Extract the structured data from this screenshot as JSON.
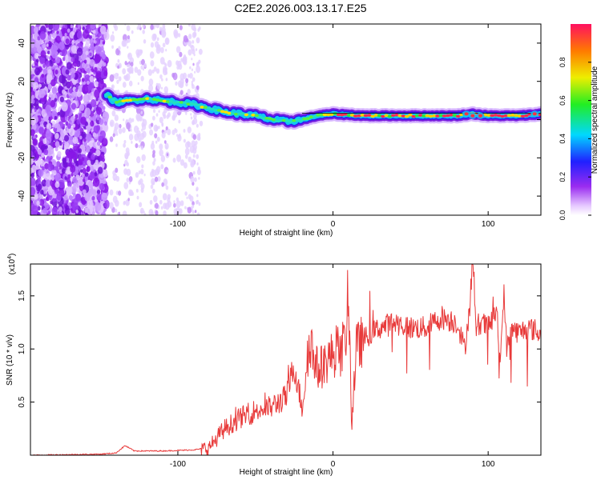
{
  "title": "C2E2.2026.003.13.17.E25",
  "chart_data": [
    {
      "type": "heatmap",
      "xlabel": "Height of straight line (km)",
      "ylabel": "Frequency (Hz)",
      "xlim": [
        -195,
        134
      ],
      "ylim": [
        -50,
        50
      ],
      "xticks": [
        -100,
        0,
        100
      ],
      "yticks": [
        -40,
        -20,
        0,
        20,
        40
      ],
      "colorbar": {
        "label": "Normalized spectral amplitude",
        "range": [
          0,
          1
        ],
        "ticks": [
          "0.0",
          "0.2",
          "0.4",
          "0.6",
          "0.8"
        ]
      },
      "ridge": {
        "x": [
          -146,
          -140,
          -130,
          -120,
          -110,
          -100,
          -90,
          -80,
          -70,
          -60,
          -50,
          -40,
          -30,
          -20,
          -10,
          0,
          20,
          40,
          60,
          80,
          90,
          100,
          120,
          134
        ],
        "frequency": [
          13,
          9,
          10,
          11,
          10,
          9,
          8,
          6,
          4,
          3,
          2,
          0,
          -1,
          0,
          2,
          3,
          2,
          2,
          2,
          2,
          3,
          2,
          2,
          3
        ]
      },
      "noise_region": {
        "x_from": -195,
        "x_to": -146
      },
      "sparse_noise_region": {
        "x_from": -146,
        "x_to": -83
      }
    },
    {
      "type": "line",
      "xlabel": "Height of straight line (km)",
      "ylabel": "SNR (10 * v/v)",
      "y_multiplier": "(x10",
      "y_multiplier_exp": "4",
      "y_multiplier_close": ")",
      "xlim": [
        -195,
        134
      ],
      "ylim": [
        0,
        1.8
      ],
      "xticks": [
        -100,
        0,
        100
      ],
      "yticks": [
        0.5,
        1.0,
        1.5
      ],
      "color": "#e83a3a",
      "series": {
        "x": [
          -195,
          -150,
          -140,
          -134,
          -128,
          -110,
          -90,
          -80,
          -70,
          -60,
          -50,
          -40,
          -30,
          -25,
          -20,
          -15,
          -10,
          0,
          8,
          10,
          12,
          15,
          20,
          30,
          40,
          50,
          60,
          70,
          80,
          85,
          88,
          90,
          92,
          95,
          100,
          105,
          108,
          110,
          112,
          115,
          120,
          125,
          130,
          134
        ],
        "values": [
          0.0,
          0.01,
          0.02,
          0.09,
          0.04,
          0.04,
          0.05,
          0.07,
          0.25,
          0.35,
          0.42,
          0.45,
          0.55,
          0.85,
          0.45,
          1.1,
          0.8,
          0.95,
          1.05,
          1.6,
          0.3,
          1.0,
          1.1,
          1.2,
          1.25,
          1.2,
          1.2,
          1.3,
          1.25,
          1.0,
          1.4,
          1.78,
          1.2,
          1.25,
          1.2,
          1.35,
          0.9,
          1.55,
          1.0,
          1.2,
          1.15,
          1.2,
          1.18,
          1.12
        ]
      }
    }
  ]
}
